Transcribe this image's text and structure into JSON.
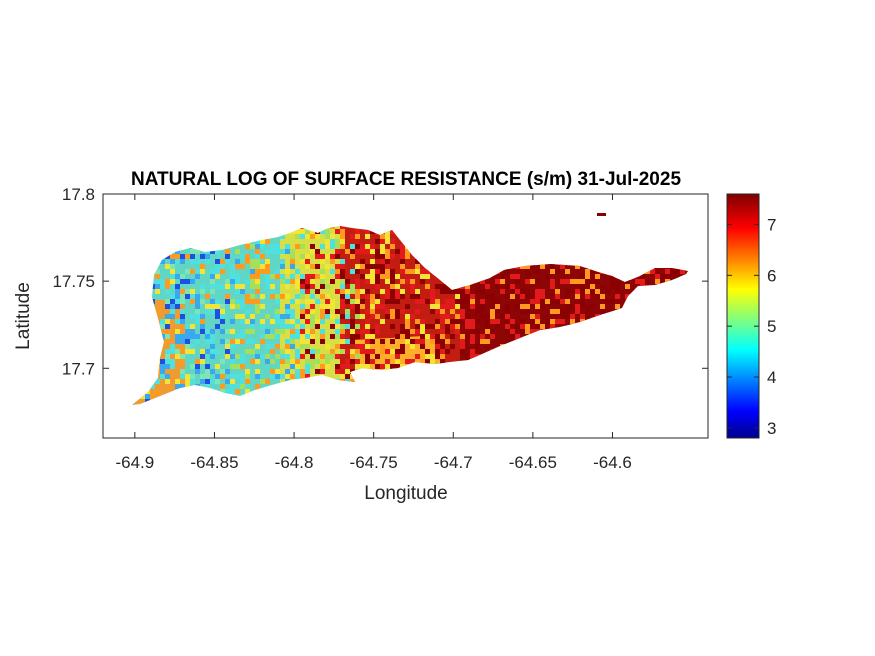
{
  "title": "NATURAL LOG OF SURFACE RESISTANCE (s/m) 31-Jul-2025",
  "xlabel": "Longitude",
  "ylabel": "Latitude",
  "xlim": [
    -64.92,
    -64.54
  ],
  "ylim": [
    17.66,
    17.8
  ],
  "x_ticks": [
    "-64.9",
    "-64.85",
    "-64.8",
    "-64.75",
    "-64.7",
    "-64.65",
    "-64.6"
  ],
  "y_ticks": [
    "17.8",
    "17.75",
    "17.7"
  ],
  "colorbar": {
    "range": [
      2.8,
      7.6
    ],
    "ticks": [
      "7",
      "6",
      "5",
      "4",
      "3"
    ],
    "colormap": "jet"
  },
  "colors": {
    "high": "#8b0000",
    "red": "#e31a1c",
    "orange": "#ff9a1f",
    "yellow": "#f3e534",
    "cyan": "#4fe0e0",
    "light_blue": "#3aa8f0",
    "blue": "#1f4fe0",
    "low": "#00008f"
  },
  "chart_data": {
    "type": "heatmap",
    "title": "NATURAL LOG OF SURFACE RESISTANCE (s/m) 31-Jul-2025",
    "xlabel": "Longitude",
    "ylabel": "Latitude",
    "xlim": [
      -64.92,
      -64.54
    ],
    "ylim": [
      17.66,
      17.8
    ],
    "value_range": [
      2.8,
      7.6
    ],
    "regions": [
      {
        "area": "west",
        "lon_range": [
          -64.89,
          -64.83
        ],
        "typical_value": 5.0
      },
      {
        "area": "central-west",
        "lon_range": [
          -64.83,
          -64.78
        ],
        "typical_value": 5.6
      },
      {
        "area": "central",
        "lon_range": [
          -64.78,
          -64.72
        ],
        "typical_value": 6.6
      },
      {
        "area": "east",
        "lon_range": [
          -64.72,
          -64.57
        ],
        "typical_value": 7.3
      }
    ]
  }
}
